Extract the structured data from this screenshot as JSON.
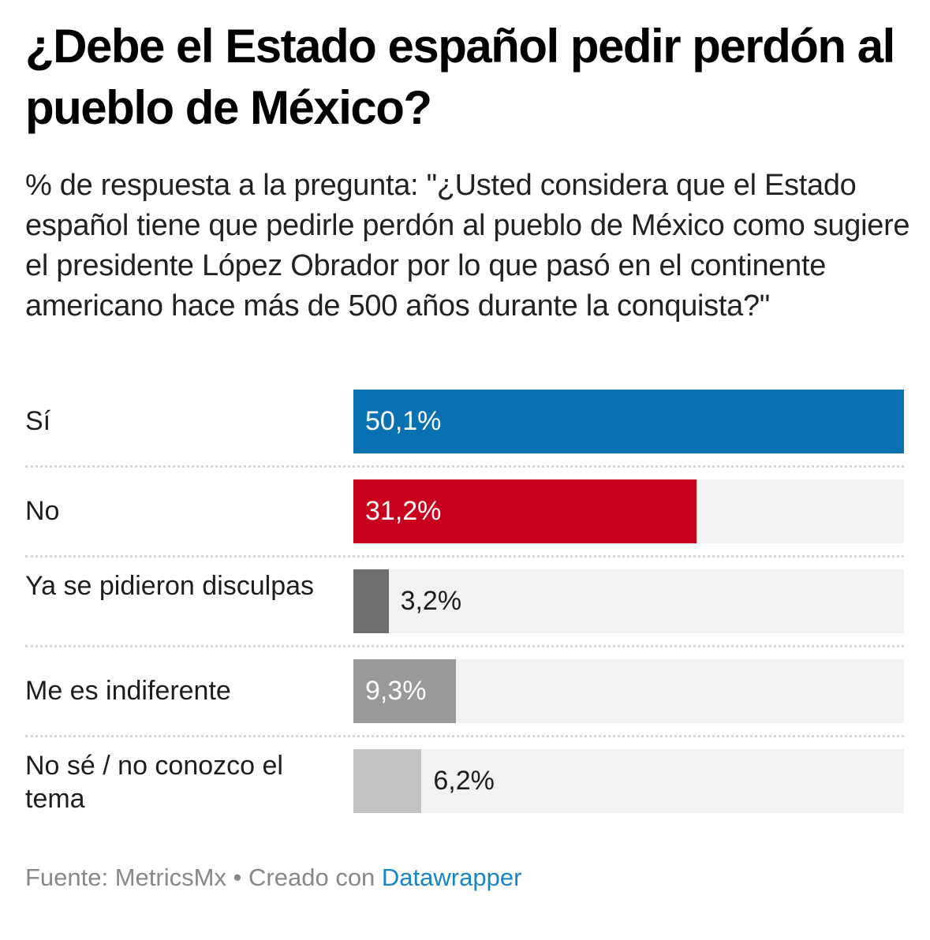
{
  "header": {
    "title": "¿Debe el Estado español pedir perdón al pueblo de México?",
    "subtitle": "% de respuesta a la pregunta: \"¿Usted considera que el Estado español tiene que pedirle perdón al pueblo de México como sugiere el presidente López Obrador por lo que pasó en el continente americano hace más de 500 años durante la conquista?\""
  },
  "chart_data": {
    "type": "bar",
    "orientation": "horizontal",
    "title": "¿Debe el Estado español pedir perdón al pueblo de México?",
    "xlabel": "",
    "ylabel": "",
    "xlim": [
      0,
      50.1
    ],
    "categories": [
      "Sí",
      "No",
      "Ya se pidieron disculpas",
      "Me es indiferente",
      "No sé / no conozco el tema"
    ],
    "values": [
      50.1,
      31.2,
      3.2,
      9.3,
      6.2
    ],
    "value_labels": [
      "50,1%",
      "31,2%",
      "3,2%",
      "9,3%",
      "6,2%"
    ],
    "colors": [
      "#0871b1",
      "#c8001e",
      "#6e6e6e",
      "#999999",
      "#c4c4c4"
    ],
    "label_inside": [
      true,
      true,
      false,
      true,
      false
    ],
    "track_color": "#f2f2f2",
    "grid": false
  },
  "footer": {
    "source": "Fuente: MetricsMx • Creado con ",
    "link": "Datawrapper",
    "link_color": "#1a85c6"
  }
}
